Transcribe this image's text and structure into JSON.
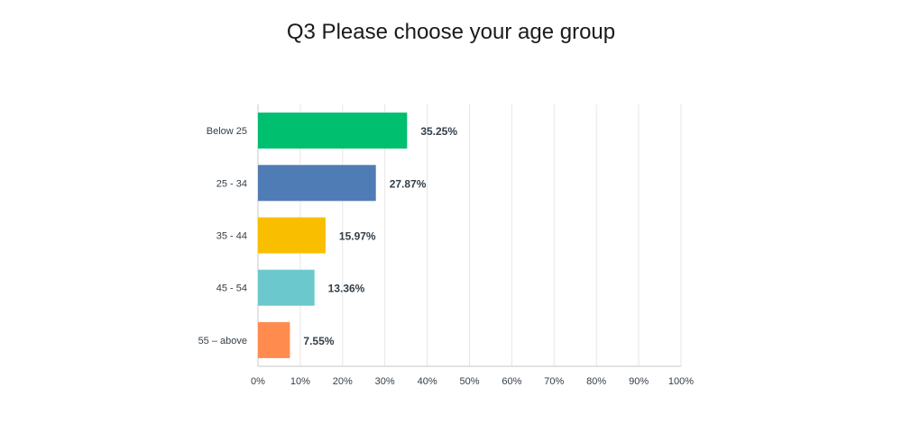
{
  "chart_data": {
    "type": "bar",
    "orientation": "horizontal",
    "title": "Q3 Please choose your age group",
    "categories": [
      "Below 25",
      "25 - 34",
      "35 - 44",
      "45 - 54",
      "55 – above"
    ],
    "values": [
      35.25,
      27.87,
      15.97,
      13.36,
      7.55
    ],
    "value_labels": [
      "35.25%",
      "27.87%",
      "15.97%",
      "13.36%",
      "7.55%"
    ],
    "colors": [
      "#00bf6f",
      "#507cb6",
      "#f9be00",
      "#6bc8cd",
      "#ff8b4f"
    ],
    "xlim": [
      0,
      100
    ],
    "xticks": [
      "0%",
      "10%",
      "20%",
      "30%",
      "40%",
      "50%",
      "60%",
      "70%",
      "80%",
      "90%",
      "100%"
    ],
    "grid": true,
    "legend": "none",
    "xlabel": "",
    "ylabel": ""
  }
}
